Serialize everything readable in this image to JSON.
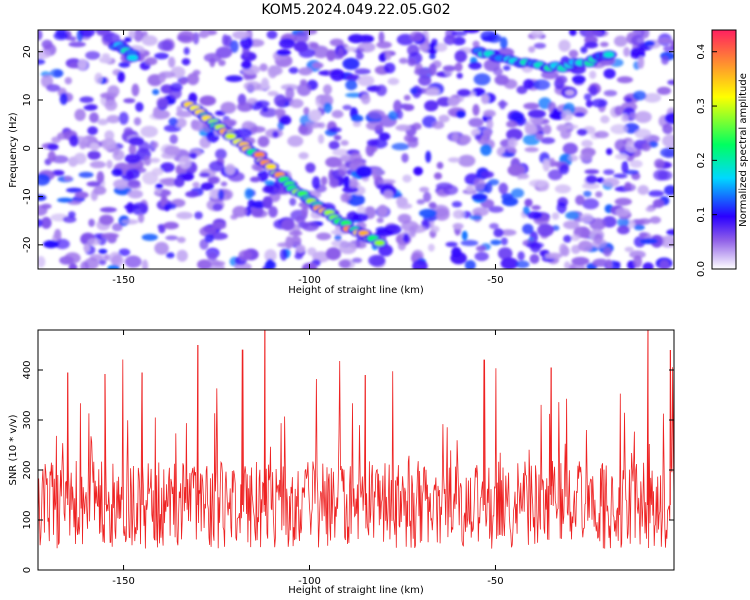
{
  "title": "KOM5.2024.049.22.05.G02",
  "colors": {
    "snr_line": "#ee2222",
    "background": "#ffffff",
    "colormap": [
      "#ffffff",
      "#9060e8",
      "#2a00ff",
      "#00d8ff",
      "#00ff60",
      "#ffff00",
      "#ff2060"
    ]
  },
  "chart_data": [
    {
      "type": "heatmap",
      "xlabel": "Height of straight line (km)",
      "ylabel": "Frequency (Hz)",
      "xlim": [
        -173,
        -2
      ],
      "ylim": [
        -25,
        24.5
      ],
      "xticks": [
        "-150",
        "-100",
        "-50"
      ],
      "xtick_values": [
        -150,
        -100,
        -50
      ],
      "yticks": [
        "-20",
        "-10",
        "0",
        "10",
        "20"
      ],
      "ytick_values": [
        -20,
        -10,
        0,
        10,
        20
      ],
      "colorbar": {
        "label": "Normalized spectral amplitude",
        "range": [
          0,
          0.44
        ],
        "ticks": [
          "0.0",
          "0.1",
          "0.2",
          "0.3",
          "0.4"
        ],
        "tick_values": [
          0.0,
          0.1,
          0.2,
          0.3,
          0.4
        ]
      },
      "features": [
        {
          "name": "main diagonal ridge",
          "x": [
            -132,
            -125,
            -118,
            -110,
            -103,
            -96,
            -88,
            -80
          ],
          "y": [
            9,
            5,
            1,
            -4,
            -9,
            -13,
            -17,
            -20
          ],
          "amplitude": 0.38
        },
        {
          "name": "upper-right ridge",
          "x": [
            -55,
            -45,
            -35,
            -25,
            -18
          ],
          "y": [
            20,
            18,
            16.5,
            18,
            20
          ],
          "amplitude": 0.22
        },
        {
          "name": "upper-left streak",
          "x": [
            -152,
            -146
          ],
          "y": [
            21.5,
            18.5
          ],
          "amplitude": 0.22
        },
        {
          "name": "peak",
          "x": [
            -121
          ],
          "y": [
            2.5
          ],
          "amplitude": 0.43
        }
      ]
    },
    {
      "type": "line",
      "xlabel": "Height of straight line (km)",
      "ylabel": "SNR (10 * v/v)",
      "xlim": [
        -173,
        -2
      ],
      "ylim": [
        0,
        480
      ],
      "xticks": [
        "-150",
        "-100",
        "-50"
      ],
      "xtick_values": [
        -150,
        -100,
        -50
      ],
      "yticks": [
        "0",
        "100",
        "200",
        "300",
        "400"
      ],
      "ytick_values": [
        0,
        100,
        200,
        300,
        400
      ],
      "series": [
        {
          "typical_range": [
            20,
            360
          ],
          "mean": 130,
          "peaks": [
            {
              "x": -112,
              "y": 480
            },
            {
              "x": -9,
              "y": 480
            },
            {
              "x": -118,
              "y": 440
            },
            {
              "x": -130,
              "y": 450
            },
            {
              "x": -3,
              "y": 440
            },
            {
              "x": -53,
              "y": 420
            },
            {
              "x": -35,
              "y": 405
            },
            {
              "x": -165,
              "y": 395
            },
            {
              "x": -155,
              "y": 392
            },
            {
              "x": -145,
              "y": 395
            },
            {
              "x": -85,
              "y": 390
            }
          ]
        }
      ]
    }
  ]
}
